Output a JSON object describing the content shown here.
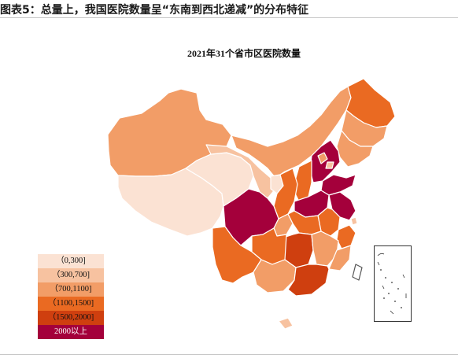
{
  "figure": {
    "title": "图表5：总量上，我国医院数量呈“东南到西北递减”的分布特征",
    "map_title": "2021年31个省市区医院数量"
  },
  "legend": {
    "items": [
      {
        "label": "（0,300]",
        "color": "#fbe2d3",
        "text_color": "#111111"
      },
      {
        "label": "（300,700]",
        "color": "#f7c2a0",
        "text_color": "#111111"
      },
      {
        "label": "（700,1100]",
        "color": "#f29d67",
        "text_color": "#111111"
      },
      {
        "label": "（1100,1500]",
        "color": "#ea6a22",
        "text_color": "#111111"
      },
      {
        "label": "（1500,2000]",
        "color": "#cf3f0f",
        "text_color": "#111111"
      },
      {
        "label": "2000以上",
        "color": "#a4003b",
        "text_color": "#ffffff"
      }
    ]
  },
  "map": {
    "regions": [
      {
        "name": "xinjiang",
        "class": 2
      },
      {
        "name": "xizang",
        "class": 0
      },
      {
        "name": "qinghai",
        "class": 0
      },
      {
        "name": "gansu",
        "class": 1
      },
      {
        "name": "neimenggu",
        "class": 2
      },
      {
        "name": "heilongjiang",
        "class": 3
      },
      {
        "name": "jilin",
        "class": 2
      },
      {
        "name": "liaoning",
        "class": 2
      },
      {
        "name": "ningxia",
        "class": 0
      },
      {
        "name": "shaanxi",
        "class": 3
      },
      {
        "name": "shanxi",
        "class": 3
      },
      {
        "name": "hebei",
        "class": 5
      },
      {
        "name": "beijing",
        "class": 2
      },
      {
        "name": "tianjin",
        "class": 1
      },
      {
        "name": "shandong",
        "class": 5
      },
      {
        "name": "henan",
        "class": 5
      },
      {
        "name": "jiangsu",
        "class": 5
      },
      {
        "name": "anhui",
        "class": 3
      },
      {
        "name": "shanghai",
        "class": 1
      },
      {
        "name": "zhejiang",
        "class": 3
      },
      {
        "name": "sichuan",
        "class": 5
      },
      {
        "name": "chongqing",
        "class": 2
      },
      {
        "name": "hubei",
        "class": 3
      },
      {
        "name": "hunan",
        "class": 4
      },
      {
        "name": "jiangxi",
        "class": 2
      },
      {
        "name": "fujian",
        "class": 2
      },
      {
        "name": "guizhou",
        "class": 3
      },
      {
        "name": "yunnan",
        "class": 3
      },
      {
        "name": "guangxi",
        "class": 2
      },
      {
        "name": "guangdong",
        "class": 4
      },
      {
        "name": "hainan",
        "class": 1
      },
      {
        "name": "taiwan",
        "class": -1
      }
    ]
  }
}
